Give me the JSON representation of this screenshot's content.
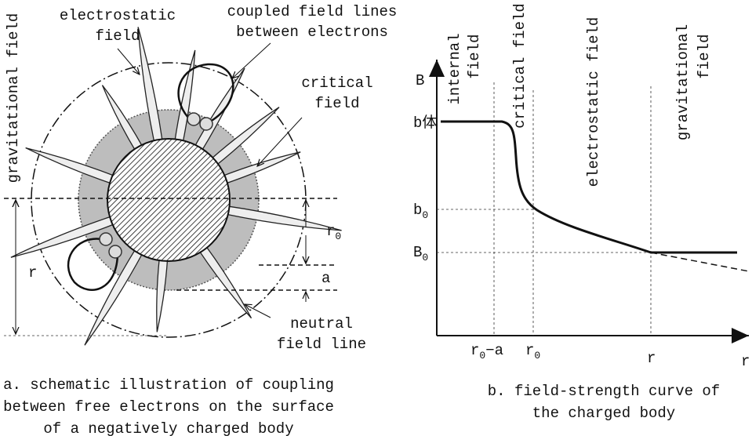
{
  "left": {
    "gravitational_field": "gravitational field",
    "electrostatic_field": [
      "electrostatic",
      "field"
    ],
    "coupled_field_lines": [
      "coupled field lines",
      "between electrons"
    ],
    "critical_field": [
      "critical",
      "field"
    ],
    "r": "r",
    "r0": {
      "base": "r",
      "sub": "0"
    },
    "a": "a",
    "neutral_field_line": [
      "neutral",
      "field line"
    ],
    "caption": [
      "a. schematic illustration of coupling",
      "between free electrons on the surface",
      "of a negatively charged body"
    ]
  },
  "right": {
    "axis_y": "B",
    "axis_x": "r",
    "regions": {
      "internal_field": [
        "internal",
        "field"
      ],
      "critical_field": "critical field",
      "electrostatic_field": "electrostatic field",
      "gravitational_field": [
        "gravitational",
        "field"
      ]
    },
    "y_labels": {
      "b_body": "b体",
      "b0": {
        "base": "b",
        "sub": "0"
      },
      "B0": {
        "base": "B",
        "sub": "0"
      }
    },
    "x_labels": {
      "r0_minus_a": {
        "base": "r",
        "sub": "0",
        "rest": "−a"
      },
      "r0": {
        "base": "r",
        "sub": "0"
      },
      "r": "r"
    },
    "caption": [
      "b. field-strength curve of",
      "the charged body"
    ]
  }
}
